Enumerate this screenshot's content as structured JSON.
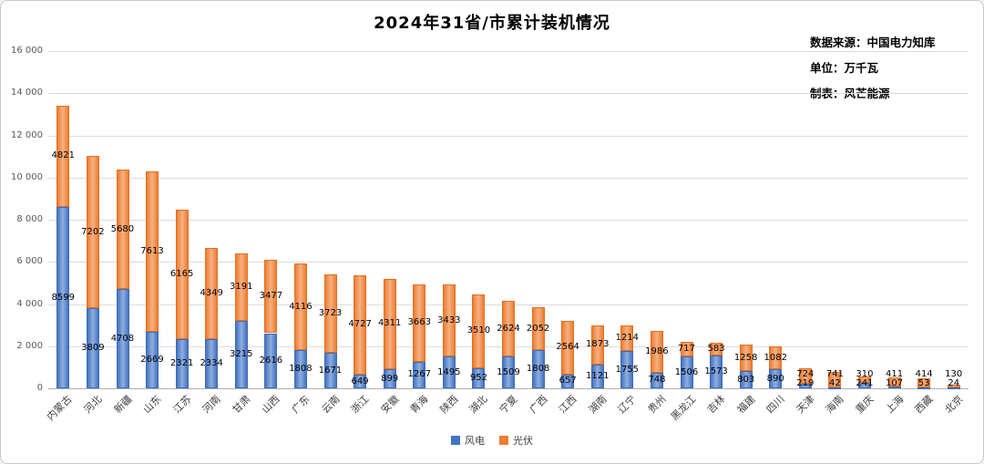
{
  "title": "2024年31省/市累计装机情况",
  "meta": {
    "source": "数据来源：中国电力知库",
    "unit": "单位：万千瓦",
    "maker": "制表：风芒能源"
  },
  "colors": {
    "wind_main": "#4472C4",
    "wind_light": "#8FAEDC",
    "wind_edge": "#3E6CB5",
    "solar_main": "#ED7D31",
    "solar_light": "#F5B183",
    "solar_edge": "#E2701F",
    "grid": "#DCDCDC",
    "axis_text": "#595959"
  },
  "chart_data": {
    "type": "bar",
    "stacked": true,
    "title": "2024年31省/市累计装机情况",
    "unit": "万千瓦",
    "categories": [
      "内蒙古",
      "河北",
      "新疆",
      "山东",
      "江苏",
      "河南",
      "甘肃",
      "山西",
      "广东",
      "云南",
      "浙江",
      "安徽",
      "青海",
      "陕西",
      "湖北",
      "宁夏",
      "广西",
      "江西",
      "湖南",
      "辽宁",
      "贵州",
      "黑龙江",
      "吉林",
      "福建",
      "四川",
      "天津",
      "海南",
      "重庆",
      "上海",
      "西藏",
      "北京"
    ],
    "series": [
      {
        "name": "风电",
        "color": "#4472C4",
        "values": [
          8599,
          3809,
          4708,
          2669,
          2321,
          2334,
          3215,
          2616,
          1808,
          1671,
          649,
          899,
          1267,
          1495,
          952,
          1509,
          1808,
          657,
          1121,
          1755,
          748,
          1506,
          1573,
          803,
          890,
          219,
          42,
          241,
          107,
          53,
          24
        ]
      },
      {
        "name": "光伏",
        "color": "#ED7D31",
        "values": [
          4821,
          7202,
          5680,
          7613,
          6165,
          4349,
          3191,
          3477,
          4116,
          3723,
          4727,
          4311,
          3663,
          3433,
          3510,
          2624,
          2052,
          2564,
          1873,
          1214,
          1986,
          717,
          583,
          1258,
          1082,
          724,
          741,
          310,
          411,
          414,
          130
        ]
      }
    ],
    "ylim": [
      0,
      16000
    ],
    "yticks": [
      0,
      2000,
      4000,
      6000,
      8000,
      10000,
      12000,
      14000,
      16000
    ],
    "grid": true,
    "legend_position": "bottom"
  }
}
